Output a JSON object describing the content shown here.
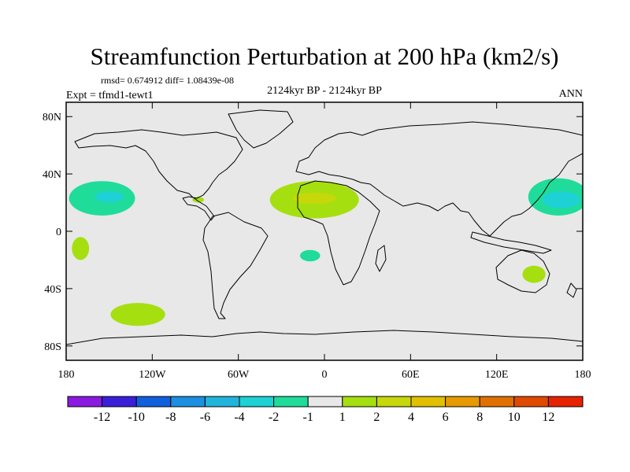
{
  "chart_data": {
    "type": "contour_map",
    "title": "Streamfunction Perturbation at 200 hPa (km2/s)",
    "stats_text": "rmsd= 0.674912 diff= 1.08439e-08",
    "left_label": "Expt = tfmd1-tewt1",
    "center_label": "2124kyr BP - 2124kyr BP",
    "right_label": "ANN",
    "lon_range": [
      -180,
      180
    ],
    "lat_range": [
      -90,
      90
    ],
    "x_ticks": [
      {
        "value": -180,
        "label": "180"
      },
      {
        "value": -120,
        "label": "120W"
      },
      {
        "value": -60,
        "label": "60W"
      },
      {
        "value": 0,
        "label": "0"
      },
      {
        "value": 60,
        "label": "60E"
      },
      {
        "value": 120,
        "label": "120E"
      },
      {
        "value": 180,
        "label": "180"
      }
    ],
    "y_ticks": [
      {
        "value": 80,
        "label": "80N"
      },
      {
        "value": 40,
        "label": "40N"
      },
      {
        "value": 0,
        "label": "0"
      },
      {
        "value": -40,
        "label": "40S"
      },
      {
        "value": -80,
        "label": "80S"
      }
    ],
    "colorbar": {
      "colors": [
        "#8b1ae0",
        "#3a1fd9",
        "#1060de",
        "#1c8fe0",
        "#1fb4dc",
        "#1dd1d4",
        "#1fdc9a",
        "#e8e8e8",
        "#a5df10",
        "#c6d80a",
        "#e2c000",
        "#e69a00",
        "#e07000",
        "#e04a00",
        "#e62200"
      ],
      "labels": [
        "-12",
        "-10",
        "-8",
        "-6",
        "-4",
        "-2",
        "-1",
        "1",
        "2",
        "4",
        "6",
        "8",
        "10",
        "12"
      ]
    },
    "regions": [
      {
        "name": "north-pacific-west-negative",
        "level": "-2",
        "color": "#1fdc9a",
        "center": [
          -155,
          23
        ],
        "radius": [
          23,
          12
        ]
      },
      {
        "name": "north-pacific-west-core",
        "level": "-4",
        "color": "#1dd1d4",
        "center": [
          -150,
          24
        ],
        "radius": [
          10,
          4
        ]
      },
      {
        "name": "north-pacific-east-negative",
        "level": "-2",
        "color": "#1fdc9a",
        "center": [
          163,
          24
        ],
        "radius": [
          21,
          13
        ]
      },
      {
        "name": "north-pacific-east-core",
        "level": "-4",
        "color": "#1dd1d4",
        "center": [
          165,
          22
        ],
        "radius": [
          13,
          6
        ]
      },
      {
        "name": "north-atlantic-positive",
        "level": "2",
        "color": "#a5df10",
        "center": [
          -7,
          22
        ],
        "radius": [
          31,
          13
        ]
      },
      {
        "name": "north-atlantic-core",
        "level": "4",
        "color": "#c6d80a",
        "center": [
          -7,
          23
        ],
        "radius": [
          15,
          4
        ]
      },
      {
        "name": "gulf-of-mexico-positive",
        "level": "2",
        "color": "#a5df10",
        "center": [
          -88,
          22
        ],
        "radius": [
          4,
          2
        ]
      },
      {
        "name": "south-atlantic-negative",
        "level": "-2",
        "color": "#1fdc9a",
        "center": [
          -10,
          -17
        ],
        "radius": [
          7,
          4
        ]
      },
      {
        "name": "south-pacific-tropical-positive",
        "level": "2",
        "color": "#a5df10",
        "center": [
          -170,
          -12
        ],
        "radius": [
          6,
          8
        ]
      },
      {
        "name": "australia-positive",
        "level": "2",
        "color": "#a5df10",
        "center": [
          146,
          -30
        ],
        "radius": [
          8,
          6
        ]
      },
      {
        "name": "southern-ocean-positive",
        "level": "2",
        "color": "#a5df10",
        "center": [
          -130,
          -58
        ],
        "radius": [
          19,
          8
        ]
      }
    ]
  }
}
